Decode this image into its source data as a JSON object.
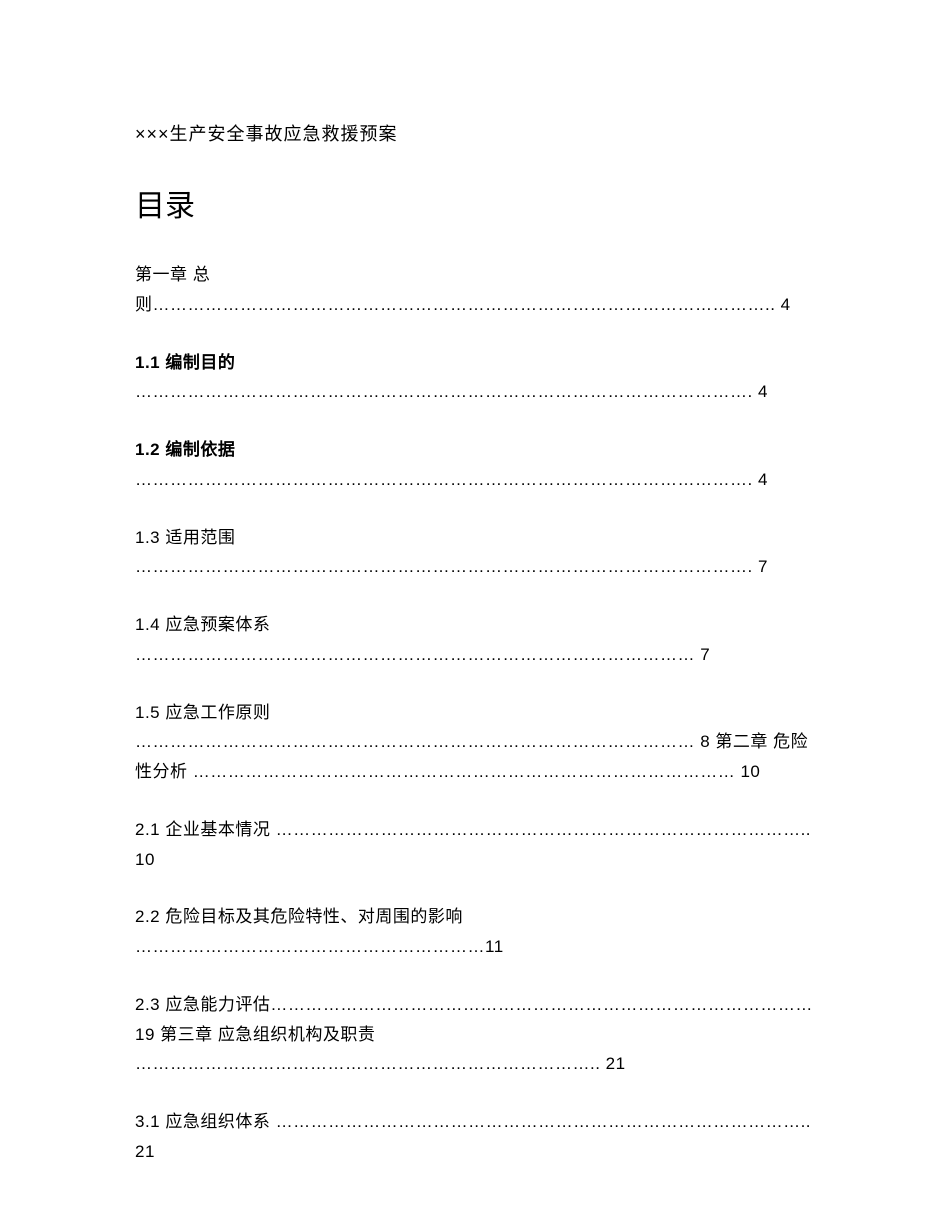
{
  "document": {
    "header_title": "×××生产安全事故应急救援预案",
    "toc_heading": "目录",
    "background_color": "#ffffff",
    "text_color": "#000000",
    "header_fontsize": 18,
    "heading_fontsize": 30,
    "entry_fontsize": 17,
    "entries": [
      {
        "text": "第一章 总则…………………………………………………………………………………………….. 4",
        "bold": false
      },
      {
        "text": "1.1 编制目的 ……………………………………………………………………………………………. 4",
        "bold": true,
        "num_prefix": "1.1"
      },
      {
        "text": "1.2 编制依据 ……………………………………………………………………………………………. 4",
        "bold": true,
        "num_prefix": "1.2"
      },
      {
        "text": "1.3 适用范围 ……………………………………………………………………………………………. 7",
        "bold": false
      },
      {
        "text": "1.4 应急预案体系 …………………………………………………………………………………… 7",
        "bold": false
      },
      {
        "text": "1.5 应急工作原则 …………………………………………………………………………………… 8 第二章 危险性分析 ………………………………………………………………………………… 10",
        "bold": false
      },
      {
        "text": "2.1 企业基本情况 ……………………………………………………………………………….. 10",
        "bold": false
      },
      {
        "text": "2.2 危险目标及其危险特性、对周围的影响 ……………………………………………………11",
        "bold": false
      },
      {
        "text": "2.3 应急能力评估………………………………………………………………………………… 19 第三章 应急组织机构及职责 …………………………………………………………………….. 21",
        "bold": false
      },
      {
        "text": "3.1 应急组织体系 ……………………………………………………………………………….. 21",
        "bold": false
      }
    ]
  }
}
